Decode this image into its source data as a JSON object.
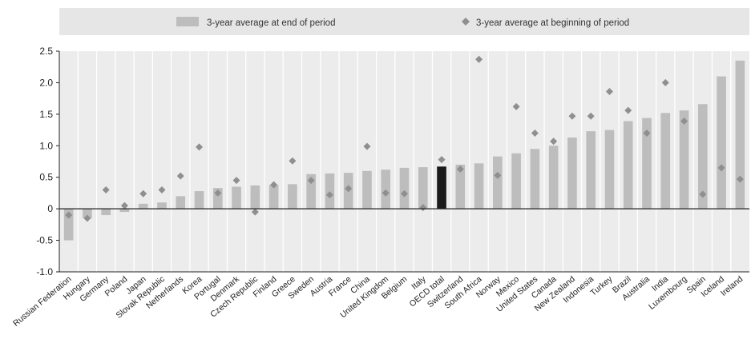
{
  "chart_data": {
    "type": "bar",
    "legend": {
      "position": "top",
      "bar_label": "3-year average at end of period",
      "marker_label": "3-year average at beginning of period"
    },
    "ylim": [
      -1.0,
      2.5
    ],
    "yticks": [
      "2.5",
      "2.0",
      "1.5",
      "1.0",
      "0.5",
      "0",
      "-0.5",
      "-1.0"
    ],
    "ytick_values": [
      2.5,
      2.0,
      1.5,
      1.0,
      0.5,
      0,
      -0.5,
      -1.0
    ],
    "grid": "vertical",
    "categories": [
      "Russian Federation",
      "Hungary",
      "Germany",
      "Poland",
      "Japan",
      "Slovak Republic",
      "Netherlands",
      "Korea",
      "Portugal",
      "Denmark",
      "Czech Republic",
      "Finland",
      "Greece",
      "Sweden",
      "Austria",
      "France",
      "China",
      "United Kingdom",
      "Belgium",
      "Italy",
      "OECD total",
      "Switzerland",
      "South Africa",
      "Norway",
      "Mexico",
      "United States",
      "Canada",
      "New Zealand",
      "Indonesia",
      "Turkey",
      "Brazil",
      "Australia",
      "India",
      "Luxembourg",
      "Spain",
      "Iceland",
      "Ireland"
    ],
    "series": [
      {
        "name": "3-year average at end of period",
        "kind": "bar",
        "values": [
          -0.5,
          -0.15,
          -0.1,
          -0.05,
          0.08,
          0.1,
          0.2,
          0.28,
          0.33,
          0.35,
          0.37,
          0.38,
          0.39,
          0.55,
          0.56,
          0.57,
          0.6,
          0.62,
          0.65,
          0.66,
          0.67,
          0.7,
          0.72,
          0.83,
          0.88,
          0.95,
          1.0,
          1.13,
          1.23,
          1.25,
          1.39,
          1.44,
          1.52,
          1.56,
          1.66,
          2.1,
          2.35
        ]
      },
      {
        "name": "3-year average at beginning of period",
        "kind": "marker",
        "values": [
          -0.1,
          -0.15,
          0.3,
          0.05,
          0.24,
          0.3,
          0.52,
          0.98,
          0.25,
          0.45,
          -0.05,
          0.38,
          0.76,
          0.45,
          0.22,
          0.32,
          0.99,
          0.25,
          0.24,
          0.02,
          0.78,
          0.63,
          2.37,
          0.53,
          1.62,
          1.2,
          1.07,
          1.47,
          1.47,
          1.86,
          1.56,
          1.2,
          2.0,
          1.39,
          0.23,
          0.65,
          0.47
        ]
      }
    ],
    "highlight_category": "OECD total",
    "colors": {
      "bar": "#bdbdbd",
      "bar_highlight": "#1a1a1a",
      "marker": "#8f8f8f",
      "plot_background": "#ececec",
      "legend_background": "#e6e6e6",
      "gridline": "#ffffff",
      "axis": "#222222"
    }
  }
}
